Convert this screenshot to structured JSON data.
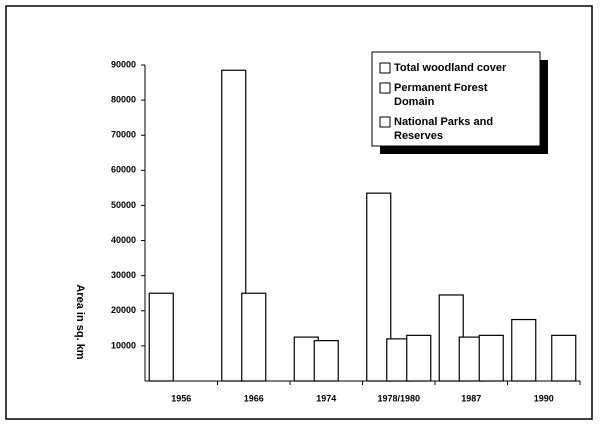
{
  "chart_data": {
    "type": "bar",
    "y_label": "Area in sq. km",
    "categories": [
      "1956",
      "1966",
      "1974",
      "1978/1980",
      "1987",
      "1990"
    ],
    "series": [
      {
        "name": "Total woodland cover",
        "color": "#ffffff",
        "values": [
          25000,
          88500,
          12500,
          53500,
          24500,
          17500
        ]
      },
      {
        "name": "Permanent Forest Domain",
        "color": "#ffffff",
        "values": [
          null,
          25000,
          11500,
          12000,
          12500,
          null
        ]
      },
      {
        "name": "National Parks and Reserves",
        "color": "#ffffff",
        "values": [
          null,
          null,
          null,
          13000,
          13000,
          13000
        ]
      }
    ],
    "ylim": [
      0,
      90000
    ],
    "yticks": [
      10000,
      20000,
      30000,
      40000,
      50000,
      60000,
      70000,
      80000,
      90000
    ],
    "legend": "top-right"
  }
}
